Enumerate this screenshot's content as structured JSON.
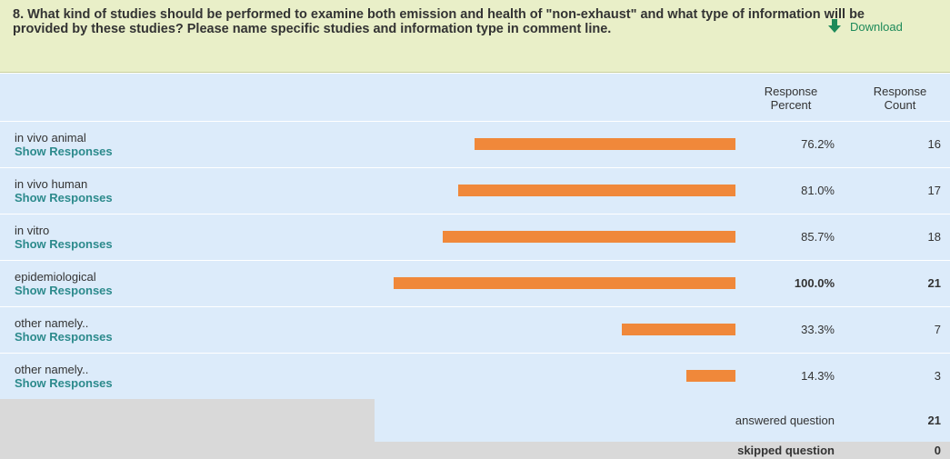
{
  "question": "8. What kind of studies should be performed to examine both emission and health of \"non-exhaust\" and what type of information will be provided by these studies? Please name specific studies and information type in comment line.",
  "download": "Download",
  "headers": {
    "percent": "Response Percent",
    "count": "Response Count"
  },
  "bar_color": "#f0883a",
  "rows": [
    {
      "label": "in vivo animal",
      "link": "Show Responses",
      "percent": 76.2,
      "percent_label": "76.2%",
      "count": 16
    },
    {
      "label": "in vivo human",
      "link": "Show Responses",
      "percent": 81.0,
      "percent_label": "81.0%",
      "count": 17
    },
    {
      "label": "in vitro",
      "link": "Show Responses",
      "percent": 85.7,
      "percent_label": "85.7%",
      "count": 18
    },
    {
      "label": "epidemiological",
      "link": "Show Responses",
      "percent": 100.0,
      "percent_label": "100.0%",
      "count": 21
    },
    {
      "label": "other namely..",
      "link": "Show Responses",
      "percent": 33.3,
      "percent_label": "33.3%",
      "count": 7
    },
    {
      "label": "other namely..",
      "link": "Show Responses",
      "percent": 14.3,
      "percent_label": "14.3%",
      "count": 3
    }
  ],
  "footer": {
    "answered_label": "answered question",
    "answered": 21,
    "skipped_label": "skipped question",
    "skipped": 0
  }
}
